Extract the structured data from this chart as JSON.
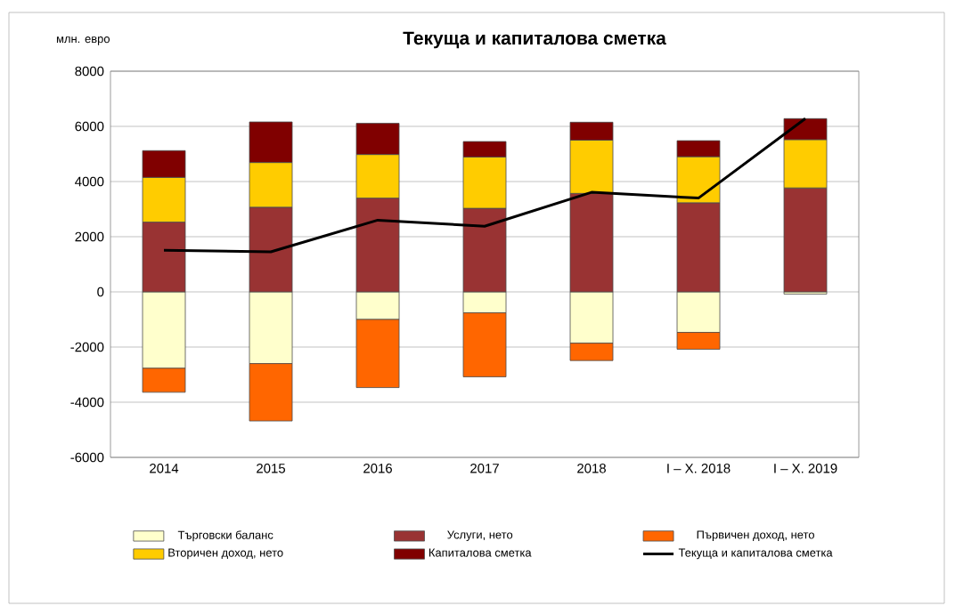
{
  "chart_data": {
    "type": "bar",
    "stacked": true,
    "title": "Текуща и капиталова сметка",
    "ylabel": "млн. евро",
    "categories": [
      "2014",
      "2015",
      "2016",
      "2017",
      "2018",
      "I – X. 2018",
      "I – X. 2019"
    ],
    "series": [
      {
        "name": "Търговски баланс",
        "color": "#ffffcc",
        "values": [
          -2770,
          -2600,
          -1000,
          -760,
          -1860,
          -1470,
          -80
        ]
      },
      {
        "name": "Услуги, нето",
        "color": "#993333",
        "values": [
          2530,
          3070,
          3400,
          3030,
          3570,
          3230,
          3770
        ]
      },
      {
        "name": "Първичен доход, нето",
        "color": "#ff6600",
        "values": [
          -870,
          -2080,
          -2470,
          -2320,
          -630,
          -610,
          0
        ]
      },
      {
        "name": "Вторичен доход, нето",
        "color": "#ffcc00",
        "values": [
          1620,
          1620,
          1580,
          1860,
          1930,
          1670,
          1750
        ]
      },
      {
        "name": "Капиталова сметка",
        "color": "#800000",
        "values": [
          970,
          1470,
          1130,
          560,
          650,
          580,
          760
        ]
      },
      {
        "name": "Текуща и капиталова сметка",
        "type": "line",
        "color": "#000000",
        "values": [
          1510,
          1450,
          2600,
          2380,
          3610,
          3400,
          6280
        ]
      }
    ],
    "ylim": [
      -6000,
      8000
    ],
    "yticks": [
      -6000,
      -4000,
      -2000,
      0,
      2000,
      4000,
      6000,
      8000
    ],
    "grid": "y",
    "legend": "bottom"
  }
}
